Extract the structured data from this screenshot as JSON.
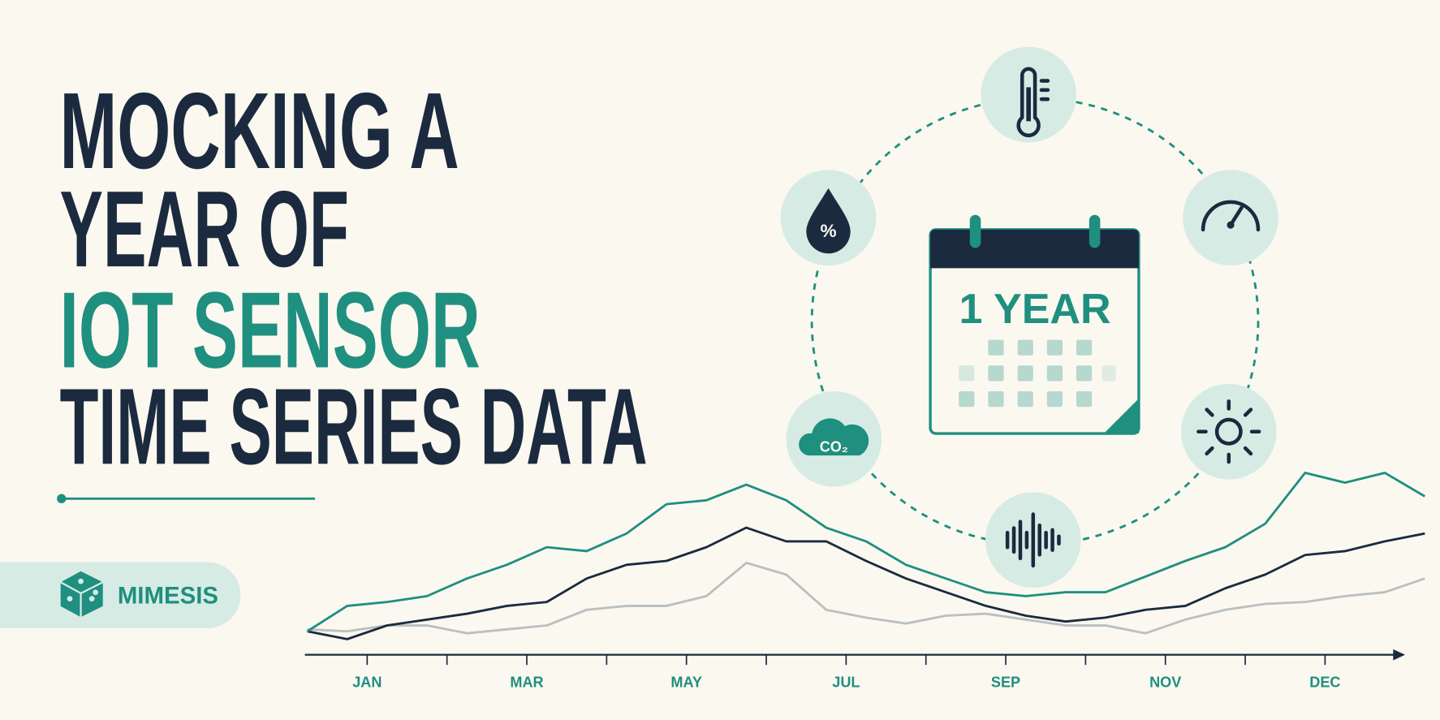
{
  "header": {
    "title_lines": [
      "MOCKING A",
      "YEAR OF",
      "IOT SENSOR",
      "TIME SERIES DATA"
    ]
  },
  "brand": {
    "name": "MIMESIS"
  },
  "calendar": {
    "label": "1 YEAR"
  },
  "icons": {
    "humidity": "%",
    "co2": "CO₂"
  },
  "chart_data": {
    "type": "line",
    "x": [
      -0.75,
      -0.25,
      0.25,
      0.75,
      1.25,
      1.75,
      2.25,
      2.75,
      3.25,
      3.75,
      4.25,
      4.75,
      5.25,
      5.75,
      6.25,
      6.75,
      7.25,
      7.75,
      8.25,
      8.75,
      9.25,
      9.75,
      10.25,
      10.75,
      11.25,
      11.75,
      12.25,
      12.75,
      13.25
    ],
    "xlim": [
      -0.78,
      13.44
    ],
    "ylim": [
      0,
      100
    ],
    "xticks": [
      {
        "value": 0,
        "label": "JAN"
      },
      1,
      {
        "value": 2,
        "label": "MAR"
      },
      3,
      {
        "value": 4,
        "label": "MAY"
      },
      5,
      {
        "value": 6,
        "label": "JUL"
      },
      7,
      {
        "value": 8,
        "label": "SEP"
      },
      9,
      {
        "value": 10,
        "label": "NOV"
      },
      11,
      {
        "value": 12,
        "label": "DEC"
      }
    ],
    "series": [
      {
        "color": "#b9c0bf",
        "values": [
          13,
          12,
          15,
          15,
          11,
          13,
          15,
          23,
          25,
          25,
          30,
          47,
          41,
          23,
          19,
          16,
          20,
          21,
          18,
          15,
          15,
          11,
          18,
          23,
          26,
          27,
          30,
          32,
          39
        ]
      },
      {
        "color": "#1b2a3e",
        "values": [
          12,
          8,
          15,
          18,
          21,
          25,
          27,
          39,
          46,
          48,
          55,
          65,
          58,
          58,
          48,
          39,
          32,
          25,
          20,
          17,
          19,
          23,
          25,
          34,
          41,
          51,
          53,
          58,
          62
        ]
      },
      {
        "color": "#1f8f7f",
        "values": [
          12,
          25,
          27,
          30,
          39,
          46,
          55,
          53,
          62,
          77,
          79,
          87,
          79,
          65,
          58,
          46,
          39,
          32,
          30,
          32,
          32,
          40,
          48,
          55,
          67,
          93,
          88,
          93,
          81
        ]
      }
    ]
  }
}
